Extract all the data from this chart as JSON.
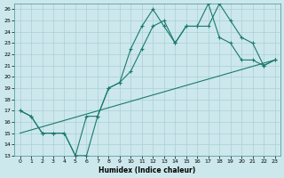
{
  "xlabel": "Humidex (Indice chaleur)",
  "bg_color": "#cce8ec",
  "line_color": "#1a7a6e",
  "grid_color": "#aacfd4",
  "xlim": [
    -0.5,
    23.5
  ],
  "ylim": [
    13,
    26.5
  ],
  "xticks": [
    0,
    1,
    2,
    3,
    4,
    5,
    6,
    7,
    8,
    9,
    10,
    11,
    12,
    13,
    14,
    15,
    16,
    17,
    18,
    19,
    20,
    21,
    22,
    23
  ],
  "yticks": [
    13,
    14,
    15,
    16,
    17,
    18,
    19,
    20,
    21,
    22,
    23,
    24,
    25,
    26
  ],
  "line1_x": [
    0,
    1,
    2,
    3,
    4,
    5,
    6,
    7,
    8,
    9,
    10,
    11,
    12,
    13,
    14,
    15,
    16,
    17,
    18,
    19,
    20,
    21,
    22,
    23
  ],
  "line1_y": [
    17.0,
    16.5,
    15.0,
    15.0,
    15.0,
    13.0,
    13.0,
    16.5,
    19.0,
    19.5,
    22.5,
    24.5,
    26.0,
    24.5,
    23.0,
    24.5,
    24.5,
    24.5,
    26.5,
    25.0,
    23.5,
    23.0,
    21.0,
    21.5
  ],
  "line2_x": [
    0,
    1,
    2,
    3,
    4,
    5,
    6,
    7,
    8,
    9,
    10,
    11,
    12,
    13,
    14,
    15,
    16,
    17,
    18,
    19,
    20,
    21,
    22,
    23
  ],
  "line2_y": [
    17.0,
    16.5,
    15.0,
    15.0,
    15.0,
    13.0,
    16.5,
    16.5,
    19.0,
    19.5,
    20.5,
    22.5,
    24.5,
    25.0,
    23.0,
    24.5,
    24.5,
    26.5,
    23.5,
    23.0,
    21.5,
    21.5,
    21.0,
    21.5
  ],
  "line3_x": [
    0,
    23
  ],
  "line3_y": [
    15.0,
    21.5
  ]
}
